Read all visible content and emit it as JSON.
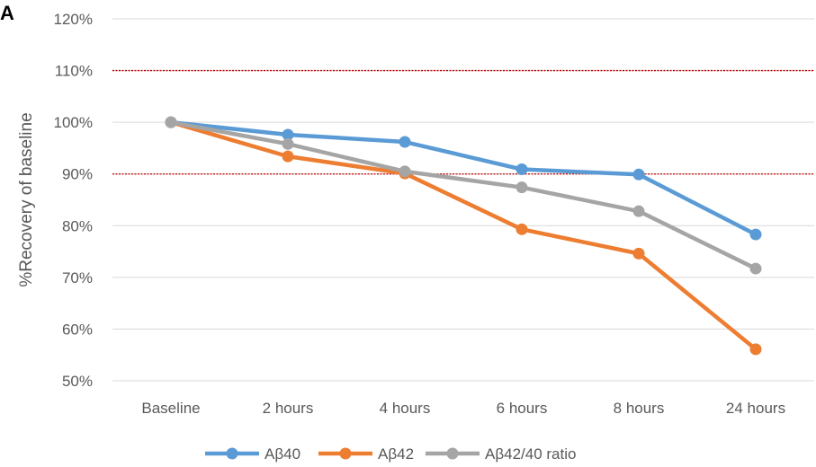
{
  "panel_label": "A",
  "chart_data": {
    "type": "line",
    "title": "",
    "xlabel": "",
    "ylabel": "%Recovery of baseline",
    "ylim": [
      50,
      120
    ],
    "y_tick_format": "percent",
    "y_ticks": [
      "50%",
      "60%",
      "70%",
      "80%",
      "90%",
      "100%",
      "110%",
      "120%"
    ],
    "categories": [
      "Baseline",
      "2 hours",
      "4 hours",
      "6 hours",
      "8 hours",
      "24 hours"
    ],
    "series": [
      {
        "name": "Aβ40",
        "color": "#5B9BD5",
        "values": [
          100,
          97.6,
          96.2,
          90.9,
          89.9,
          78.3
        ]
      },
      {
        "name": "Aβ42",
        "color": "#ED7D31",
        "values": [
          100,
          93.4,
          90.1,
          79.3,
          74.6,
          56.1
        ]
      },
      {
        "name": "Aβ42/40 ratio",
        "color": "#A5A5A5",
        "values": [
          100,
          95.8,
          90.5,
          87.4,
          82.8,
          71.7
        ]
      }
    ],
    "reference_lines": [
      {
        "y": 110,
        "color": "#C00000",
        "style": "dotted"
      },
      {
        "y": 90,
        "color": "#C00000",
        "style": "dotted"
      }
    ],
    "grid": true,
    "legend_position": "bottom"
  }
}
